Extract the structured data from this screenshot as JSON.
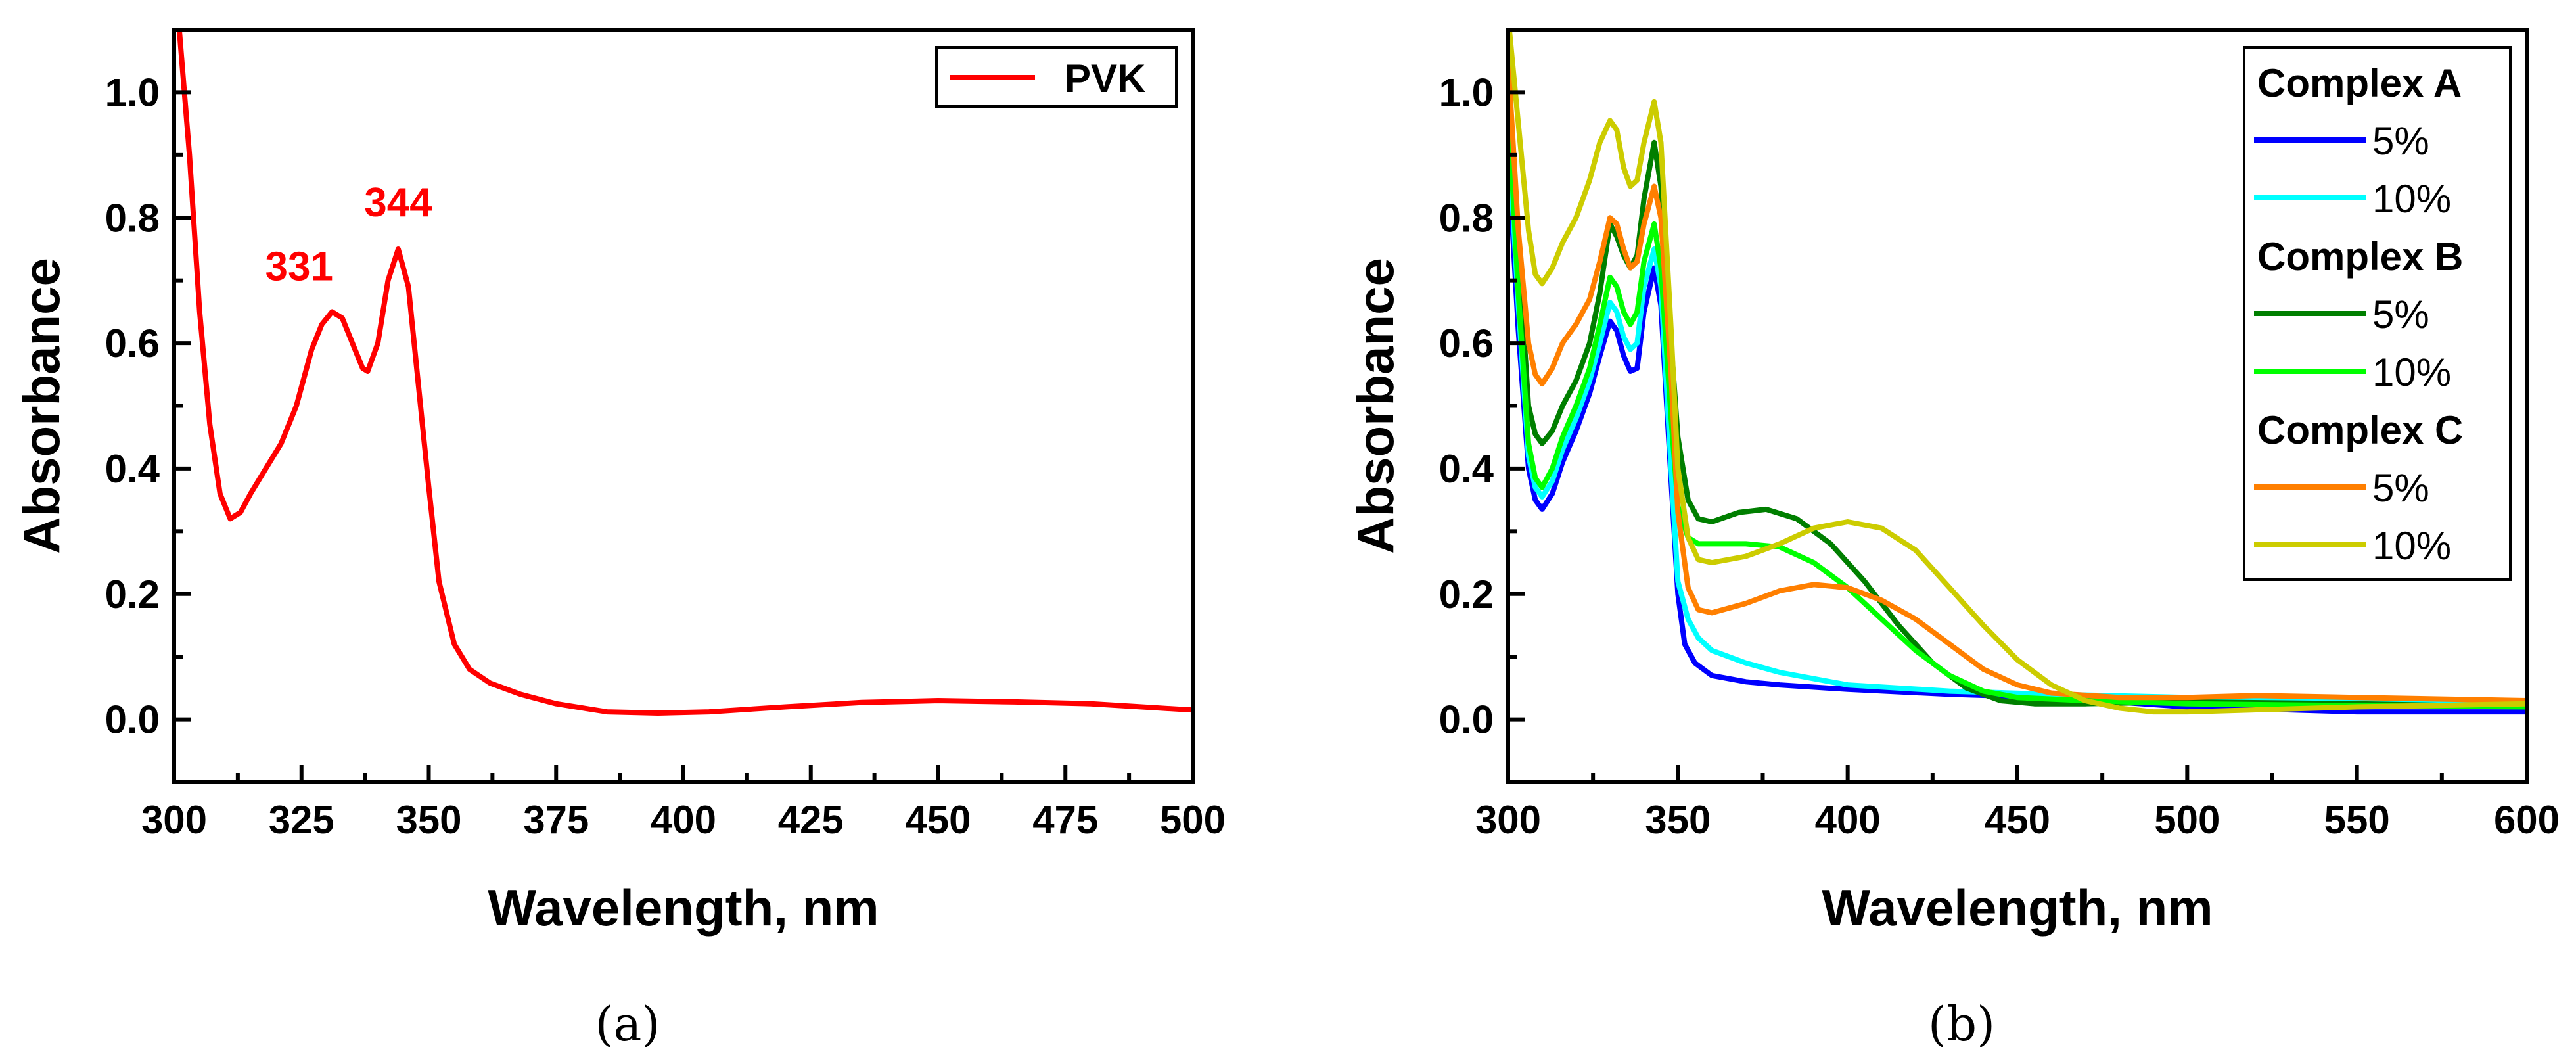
{
  "chart_data": [
    {
      "type": "line",
      "panel_label": "(a)",
      "title": "",
      "xlabel": "Wavelength, nm",
      "ylabel": "Absorbance",
      "xlim": [
        300,
        500
      ],
      "ylim": [
        -0.1,
        1.1
      ],
      "xticks": [
        "300",
        "325",
        "350",
        "375",
        "400",
        "425",
        "450",
        "475",
        "500"
      ],
      "yticks": [
        "0.0",
        "0.2",
        "0.4",
        "0.6",
        "0.8",
        "1.0"
      ],
      "legend": {
        "placement": "top-right",
        "entries": [
          "PVK"
        ]
      },
      "grid": false,
      "annotations": [
        {
          "text": "331",
          "x": 331,
          "y": 0.65,
          "color": "#ff0000"
        },
        {
          "text": "344",
          "x": 344,
          "y": 0.75,
          "color": "#ff0000"
        }
      ],
      "series": [
        {
          "name": "PVK",
          "color": "#ff0000",
          "points": [
            [
              301,
              1.1
            ],
            [
              303,
              0.9
            ],
            [
              305,
              0.65
            ],
            [
              307,
              0.47
            ],
            [
              309,
              0.36
            ],
            [
              311,
              0.32
            ],
            [
              313,
              0.33
            ],
            [
              315,
              0.36
            ],
            [
              318,
              0.4
            ],
            [
              321,
              0.44
            ],
            [
              324,
              0.5
            ],
            [
              327,
              0.59
            ],
            [
              329,
              0.63
            ],
            [
              331,
              0.65
            ],
            [
              333,
              0.64
            ],
            [
              335,
              0.6
            ],
            [
              337,
              0.56
            ],
            [
              338,
              0.555
            ],
            [
              340,
              0.6
            ],
            [
              342,
              0.7
            ],
            [
              344,
              0.75
            ],
            [
              346,
              0.69
            ],
            [
              348,
              0.53
            ],
            [
              350,
              0.37
            ],
            [
              352,
              0.22
            ],
            [
              355,
              0.12
            ],
            [
              358,
              0.08
            ],
            [
              362,
              0.058
            ],
            [
              368,
              0.04
            ],
            [
              375,
              0.025
            ],
            [
              385,
              0.012
            ],
            [
              395,
              0.01
            ],
            [
              405,
              0.012
            ],
            [
              420,
              0.02
            ],
            [
              435,
              0.027
            ],
            [
              450,
              0.03
            ],
            [
              465,
              0.028
            ],
            [
              480,
              0.025
            ],
            [
              490,
              0.02
            ],
            [
              500,
              0.015
            ]
          ]
        }
      ]
    },
    {
      "type": "line",
      "panel_label": "(b)",
      "title": "",
      "xlabel": "Wavelength, nm",
      "ylabel": "Absorbance",
      "xlim": [
        300,
        600
      ],
      "ylim": [
        -0.1,
        1.1
      ],
      "xticks": [
        "300",
        "350",
        "400",
        "450",
        "500",
        "550",
        "600"
      ],
      "yticks": [
        "0.0",
        "0.2",
        "0.4",
        "0.6",
        "0.8",
        "1.0"
      ],
      "legend": {
        "placement": "top-right",
        "groups": [
          {
            "title": "Complex A",
            "entries": [
              "5%",
              "10%"
            ]
          },
          {
            "title": "Complex B",
            "entries": [
              "5%",
              "10%"
            ]
          },
          {
            "title": "Complex C",
            "entries": [
              "5%",
              "10%"
            ]
          }
        ]
      },
      "grid": false,
      "series": [
        {
          "name": "5%",
          "group": "Complex A",
          "color": "#0000ff",
          "points": [
            [
              300,
              0.9
            ],
            [
              303,
              0.62
            ],
            [
              306,
              0.4
            ],
            [
              308,
              0.35
            ],
            [
              310,
              0.335
            ],
            [
              313,
              0.36
            ],
            [
              316,
              0.41
            ],
            [
              320,
              0.46
            ],
            [
              324,
              0.52
            ],
            [
              327,
              0.58
            ],
            [
              330,
              0.635
            ],
            [
              332,
              0.62
            ],
            [
              334,
              0.58
            ],
            [
              336,
              0.555
            ],
            [
              338,
              0.56
            ],
            [
              340,
              0.65
            ],
            [
              343,
              0.72
            ],
            [
              345,
              0.66
            ],
            [
              348,
              0.38
            ],
            [
              350,
              0.2
            ],
            [
              352,
              0.12
            ],
            [
              355,
              0.09
            ],
            [
              360,
              0.07
            ],
            [
              370,
              0.06
            ],
            [
              380,
              0.055
            ],
            [
              400,
              0.048
            ],
            [
              430,
              0.04
            ],
            [
              460,
              0.035
            ],
            [
              500,
              0.02
            ],
            [
              550,
              0.012
            ],
            [
              600,
              0.012
            ]
          ]
        },
        {
          "name": "10%",
          "group": "Complex A",
          "color": "#00ffff",
          "points": [
            [
              300,
              0.94
            ],
            [
              303,
              0.66
            ],
            [
              306,
              0.42
            ],
            [
              308,
              0.37
            ],
            [
              310,
              0.355
            ],
            [
              313,
              0.38
            ],
            [
              316,
              0.43
            ],
            [
              320,
              0.48
            ],
            [
              324,
              0.54
            ],
            [
              327,
              0.6
            ],
            [
              330,
              0.665
            ],
            [
              332,
              0.65
            ],
            [
              334,
              0.61
            ],
            [
              336,
              0.59
            ],
            [
              338,
              0.6
            ],
            [
              340,
              0.69
            ],
            [
              343,
              0.75
            ],
            [
              345,
              0.69
            ],
            [
              348,
              0.4
            ],
            [
              350,
              0.22
            ],
            [
              353,
              0.16
            ],
            [
              356,
              0.13
            ],
            [
              360,
              0.11
            ],
            [
              370,
              0.09
            ],
            [
              380,
              0.075
            ],
            [
              400,
              0.055
            ],
            [
              430,
              0.045
            ],
            [
              460,
              0.04
            ],
            [
              500,
              0.035
            ],
            [
              550,
              0.03
            ],
            [
              600,
              0.028
            ]
          ]
        },
        {
          "name": "5%",
          "group": "Complex B",
          "color": "#007f00",
          "points": [
            [
              300,
              1.05
            ],
            [
              303,
              0.75
            ],
            [
              306,
              0.5
            ],
            [
              308,
              0.455
            ],
            [
              310,
              0.44
            ],
            [
              313,
              0.46
            ],
            [
              316,
              0.5
            ],
            [
              320,
              0.54
            ],
            [
              324,
              0.6
            ],
            [
              327,
              0.68
            ],
            [
              330,
              0.79
            ],
            [
              332,
              0.77
            ],
            [
              334,
              0.74
            ],
            [
              336,
              0.72
            ],
            [
              338,
              0.74
            ],
            [
              340,
              0.83
            ],
            [
              343,
              0.92
            ],
            [
              345,
              0.85
            ],
            [
              348,
              0.6
            ],
            [
              350,
              0.45
            ],
            [
              353,
              0.35
            ],
            [
              356,
              0.32
            ],
            [
              360,
              0.315
            ],
            [
              368,
              0.33
            ],
            [
              376,
              0.335
            ],
            [
              385,
              0.32
            ],
            [
              395,
              0.28
            ],
            [
              405,
              0.22
            ],
            [
              415,
              0.15
            ],
            [
              425,
              0.09
            ],
            [
              435,
              0.05
            ],
            [
              445,
              0.03
            ],
            [
              455,
              0.025
            ],
            [
              470,
              0.025
            ],
            [
              500,
              0.028
            ],
            [
              550,
              0.025
            ],
            [
              600,
              0.02
            ]
          ]
        },
        {
          "name": "10%",
          "group": "Complex B",
          "color": "#00ff00",
          "points": [
            [
              300,
              0.98
            ],
            [
              303,
              0.68
            ],
            [
              306,
              0.44
            ],
            [
              308,
              0.385
            ],
            [
              310,
              0.37
            ],
            [
              313,
              0.4
            ],
            [
              316,
              0.45
            ],
            [
              320,
              0.5
            ],
            [
              324,
              0.56
            ],
            [
              327,
              0.63
            ],
            [
              330,
              0.705
            ],
            [
              332,
              0.69
            ],
            [
              334,
              0.65
            ],
            [
              336,
              0.63
            ],
            [
              338,
              0.65
            ],
            [
              340,
              0.73
            ],
            [
              343,
              0.79
            ],
            [
              345,
              0.72
            ],
            [
              348,
              0.48
            ],
            [
              350,
              0.34
            ],
            [
              353,
              0.29
            ],
            [
              356,
              0.28
            ],
            [
              360,
              0.28
            ],
            [
              370,
              0.28
            ],
            [
              380,
              0.275
            ],
            [
              390,
              0.25
            ],
            [
              400,
              0.21
            ],
            [
              410,
              0.16
            ],
            [
              420,
              0.11
            ],
            [
              430,
              0.07
            ],
            [
              440,
              0.045
            ],
            [
              450,
              0.035
            ],
            [
              470,
              0.03
            ],
            [
              500,
              0.025
            ],
            [
              550,
              0.022
            ],
            [
              600,
              0.02
            ]
          ]
        },
        {
          "name": "5%",
          "group": "Complex C",
          "color": "#ff7f00",
          "points": [
            [
              300,
              1.05
            ],
            [
              303,
              0.78
            ],
            [
              306,
              0.6
            ],
            [
              308,
              0.55
            ],
            [
              310,
              0.535
            ],
            [
              313,
              0.56
            ],
            [
              316,
              0.6
            ],
            [
              320,
              0.63
            ],
            [
              324,
              0.67
            ],
            [
              327,
              0.73
            ],
            [
              330,
              0.8
            ],
            [
              332,
              0.79
            ],
            [
              334,
              0.75
            ],
            [
              336,
              0.72
            ],
            [
              338,
              0.73
            ],
            [
              340,
              0.79
            ],
            [
              343,
              0.85
            ],
            [
              345,
              0.8
            ],
            [
              348,
              0.55
            ],
            [
              350,
              0.33
            ],
            [
              353,
              0.21
            ],
            [
              356,
              0.175
            ],
            [
              360,
              0.17
            ],
            [
              370,
              0.185
            ],
            [
              380,
              0.205
            ],
            [
              390,
              0.215
            ],
            [
              400,
              0.21
            ],
            [
              410,
              0.19
            ],
            [
              420,
              0.16
            ],
            [
              430,
              0.12
            ],
            [
              440,
              0.08
            ],
            [
              450,
              0.055
            ],
            [
              460,
              0.042
            ],
            [
              480,
              0.035
            ],
            [
              500,
              0.035
            ],
            [
              520,
              0.038
            ],
            [
              550,
              0.035
            ],
            [
              600,
              0.03
            ]
          ]
        },
        {
          "name": "10%",
          "group": "Complex C",
          "color": "#cccc00",
          "points": [
            [
              300,
              1.12
            ],
            [
              303,
              0.95
            ],
            [
              306,
              0.78
            ],
            [
              308,
              0.71
            ],
            [
              310,
              0.695
            ],
            [
              313,
              0.72
            ],
            [
              316,
              0.76
            ],
            [
              320,
              0.8
            ],
            [
              324,
              0.86
            ],
            [
              327,
              0.92
            ],
            [
              330,
              0.955
            ],
            [
              332,
              0.94
            ],
            [
              334,
              0.88
            ],
            [
              336,
              0.85
            ],
            [
              338,
              0.86
            ],
            [
              340,
              0.92
            ],
            [
              343,
              0.985
            ],
            [
              345,
              0.92
            ],
            [
              348,
              0.62
            ],
            [
              350,
              0.4
            ],
            [
              353,
              0.29
            ],
            [
              356,
              0.255
            ],
            [
              360,
              0.25
            ],
            [
              370,
              0.26
            ],
            [
              380,
              0.28
            ],
            [
              390,
              0.305
            ],
            [
              400,
              0.315
            ],
            [
              410,
              0.305
            ],
            [
              420,
              0.27
            ],
            [
              430,
              0.21
            ],
            [
              440,
              0.15
            ],
            [
              450,
              0.095
            ],
            [
              460,
              0.055
            ],
            [
              470,
              0.03
            ],
            [
              480,
              0.018
            ],
            [
              490,
              0.012
            ],
            [
              500,
              0.012
            ],
            [
              550,
              0.02
            ],
            [
              600,
              0.025
            ]
          ]
        }
      ]
    }
  ]
}
